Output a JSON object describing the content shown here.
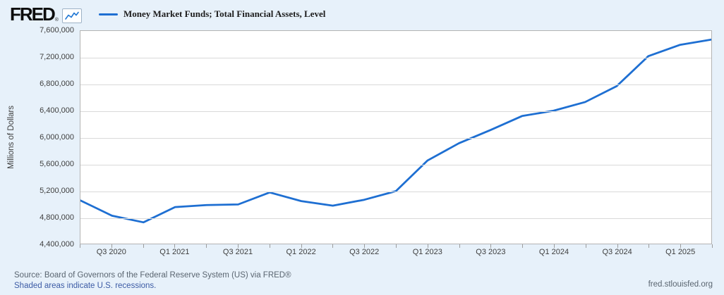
{
  "header": {
    "logo_text": "FRED",
    "reg_mark": "®",
    "legend_label": "Money Market Funds; Total Financial Assets, Level"
  },
  "chart_data": {
    "type": "line",
    "title": "Money Market Funds; Total Financial Assets, Level",
    "xlabel": "",
    "ylabel": "Millions of Dollars",
    "x": [
      "Q2 2020",
      "Q3 2020",
      "Q4 2020",
      "Q1 2021",
      "Q2 2021",
      "Q3 2021",
      "Q4 2021",
      "Q1 2022",
      "Q2 2022",
      "Q3 2022",
      "Q4 2022",
      "Q1 2023",
      "Q2 2023",
      "Q3 2023",
      "Q4 2023",
      "Q1 2024",
      "Q2 2024",
      "Q3 2024",
      "Q4 2024",
      "Q1 2025",
      "Q2 2025"
    ],
    "values": [
      5050000,
      4820000,
      4720000,
      4950000,
      4980000,
      4990000,
      5170000,
      5040000,
      4970000,
      5060000,
      5190000,
      5650000,
      5910000,
      6110000,
      6320000,
      6400000,
      6530000,
      6770000,
      7220000,
      7390000,
      7470000
    ],
    "ylim": [
      4400000,
      7600000
    ],
    "y_ticks": [
      4400000,
      4800000,
      5200000,
      5600000,
      6000000,
      6400000,
      6800000,
      7200000,
      7600000
    ],
    "x_tick_labels": [
      "Q3 2020",
      "Q1 2021",
      "Q3 2021",
      "Q1 2022",
      "Q3 2022",
      "Q1 2023",
      "Q3 2023",
      "Q1 2024",
      "Q3 2024",
      "Q1 2025"
    ],
    "grid": "horizontal",
    "legend_position": "top-left",
    "line_color": "#1e6fd2",
    "plot_background": "#ffffff",
    "page_background": "#e7f1fa"
  },
  "footer": {
    "source_line": "Source: Board of Governors of the Federal Reserve System (US) via FRED®",
    "recession_note": "Shaded areas indicate U.S. recessions.",
    "site": "fred.stlouisfed.org"
  }
}
